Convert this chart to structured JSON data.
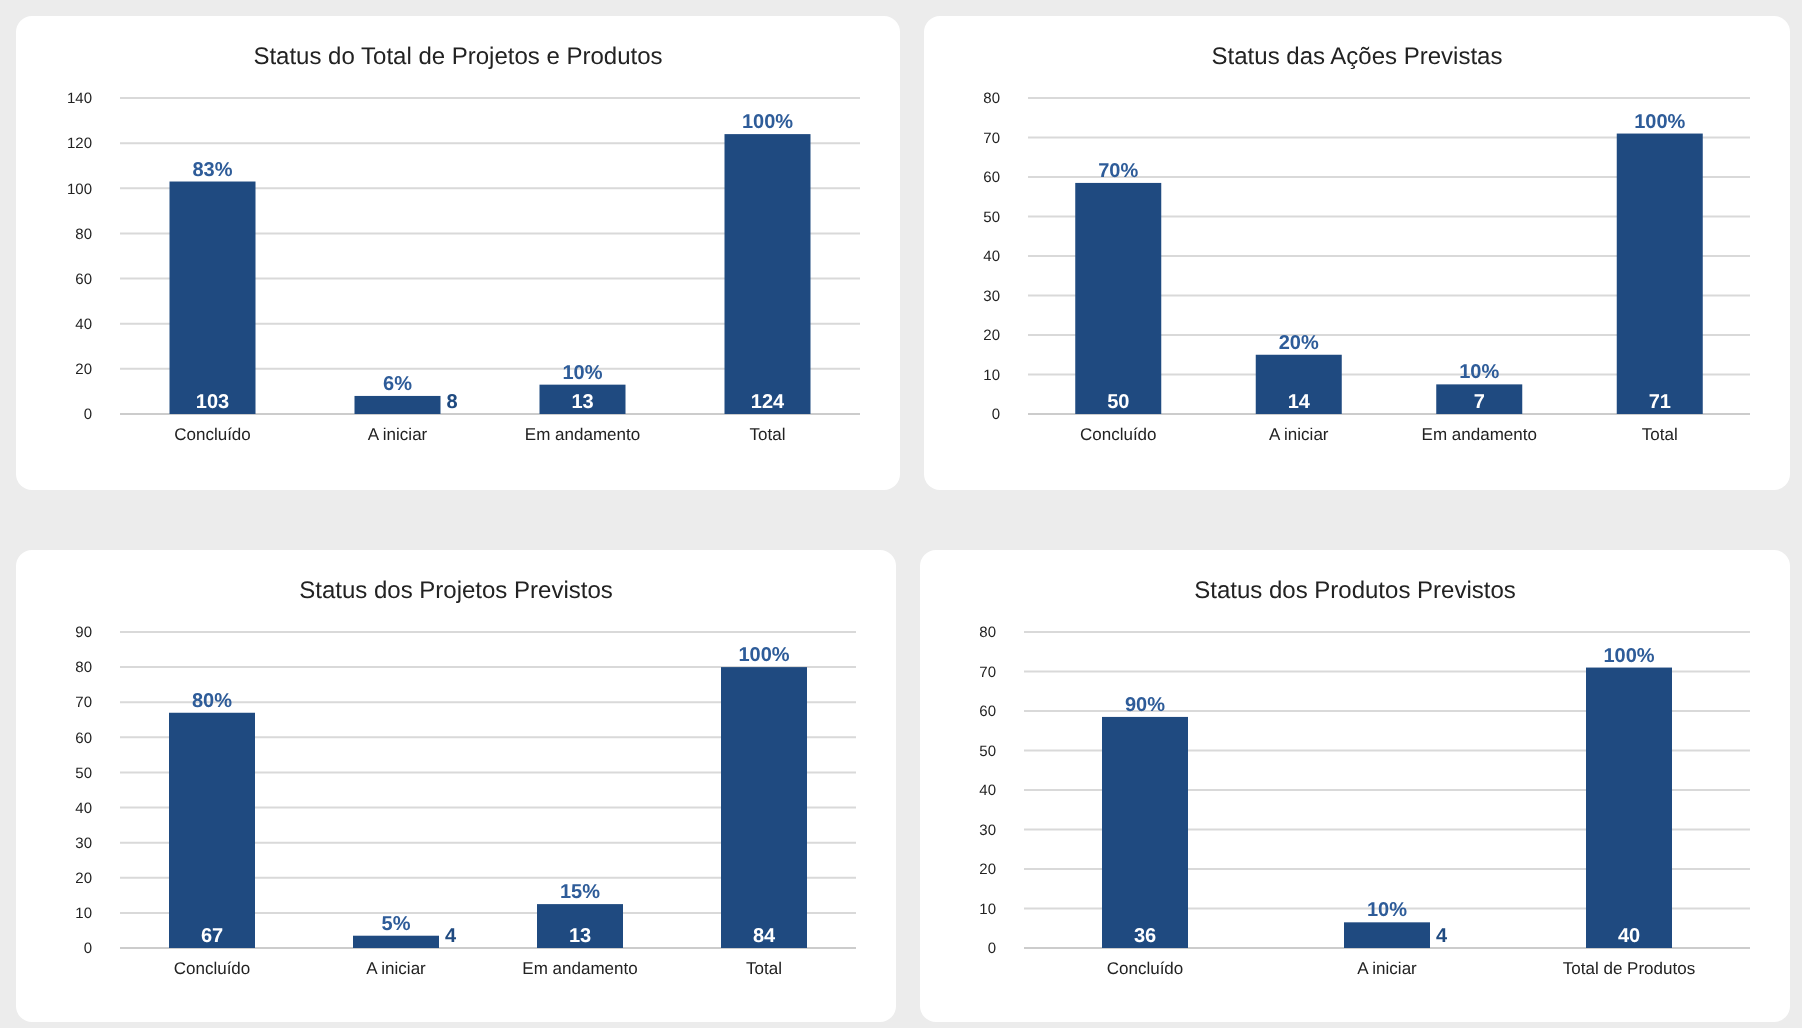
{
  "chart_data": [
    {
      "type": "bar",
      "title": "Status do Total de Projetos e Produtos",
      "categories": [
        "Concluído",
        "A iniciar",
        "Em andamento",
        "Total"
      ],
      "values": [
        103,
        8,
        13,
        124
      ],
      "data_labels": true,
      "color": "#1f4a80",
      "ylim": [
        0,
        140
      ],
      "yticks": [
        0,
        20,
        40,
        60,
        80,
        100,
        120,
        140
      ],
      "grid": "y",
      "annotations": [
        {
          "text": "83%",
          "x": "Concluído",
          "y": 103
        },
        {
          "text": "6%",
          "x": "A iniciar",
          "y": 8
        },
        {
          "text": "10%",
          "x": "Em andamento",
          "y": 13
        },
        {
          "text": "100%",
          "x": "Total",
          "y": 124
        }
      ]
    },
    {
      "type": "bar",
      "title": "Status das Ações Previstas",
      "categories": [
        "Concluído",
        "A iniciar",
        "Em andamento",
        "Total"
      ],
      "values": [
        58.5,
        15,
        7.5,
        71
      ],
      "color": "#1f4a80",
      "ylim": [
        0,
        80
      ],
      "yticks": [
        0,
        10,
        20,
        30,
        40,
        50,
        60,
        70,
        80
      ],
      "grid": "y",
      "annotations": [
        {
          "text": "70%",
          "x": "Concluído",
          "y": 58.5
        },
        {
          "text": "20%",
          "x": "A iniciar",
          "y": 15
        },
        {
          "text": "10%",
          "x": "Em andamento",
          "y": 7.5
        },
        {
          "text": "100%",
          "x": "Total",
          "y": 71
        },
        {
          "text": "50",
          "x": "Concluído",
          "y": 0
        },
        {
          "text": "14",
          "x": "A iniciar",
          "y": 0
        },
        {
          "text": "7",
          "x": "Em andamento",
          "y": 0
        },
        {
          "text": "71",
          "x": "Total",
          "y": 0
        }
      ]
    },
    {
      "type": "bar",
      "title": "Status dos Projetos Previstos",
      "categories": [
        "Concluído",
        "A iniciar",
        "Em andamento",
        "Total"
      ],
      "values": [
        67,
        3.5,
        12.5,
        80
      ],
      "color": "#1f4a80",
      "ylim": [
        0,
        90
      ],
      "yticks": [
        0,
        10,
        20,
        30,
        40,
        50,
        60,
        70,
        80,
        90
      ],
      "grid": "y",
      "annotations": [
        {
          "text": "80%",
          "x": "Concluído",
          "y": 67
        },
        {
          "text": "5%",
          "x": "A iniciar",
          "y": 3.5
        },
        {
          "text": "15%",
          "x": "Em andamento",
          "y": 12.5
        },
        {
          "text": "100%",
          "x": "Total",
          "y": 80
        },
        {
          "text": "67",
          "x": "Concluído",
          "y": 0
        },
        {
          "text": "4",
          "x": "A iniciar",
          "y": 0
        },
        {
          "text": "13",
          "x": "Em andamento",
          "y": 0
        },
        {
          "text": "84",
          "x": "Total",
          "y": 0
        }
      ]
    },
    {
      "type": "bar",
      "title": "Status dos Produtos Previstos",
      "categories": [
        "Concluído",
        "A iniciar",
        "Total de Produtos"
      ],
      "values": [
        58.5,
        6.5,
        71
      ],
      "color": "#1f4a80",
      "ylim": [
        0,
        80
      ],
      "yticks": [
        0,
        10,
        20,
        30,
        40,
        50,
        60,
        70,
        80
      ],
      "grid": "y",
      "annotations": [
        {
          "text": "90%",
          "x": "Concluído",
          "y": 58.5
        },
        {
          "text": "10%",
          "x": "A iniciar",
          "y": 6.5
        },
        {
          "text": "100%",
          "x": "Total de Produtos",
          "y": 71
        },
        {
          "text": "36",
          "x": "Concluído",
          "y": 0
        },
        {
          "text": "4",
          "x": "A iniciar",
          "y": 0
        },
        {
          "text": "40",
          "x": "Total de Produtos",
          "y": 0
        }
      ]
    }
  ]
}
